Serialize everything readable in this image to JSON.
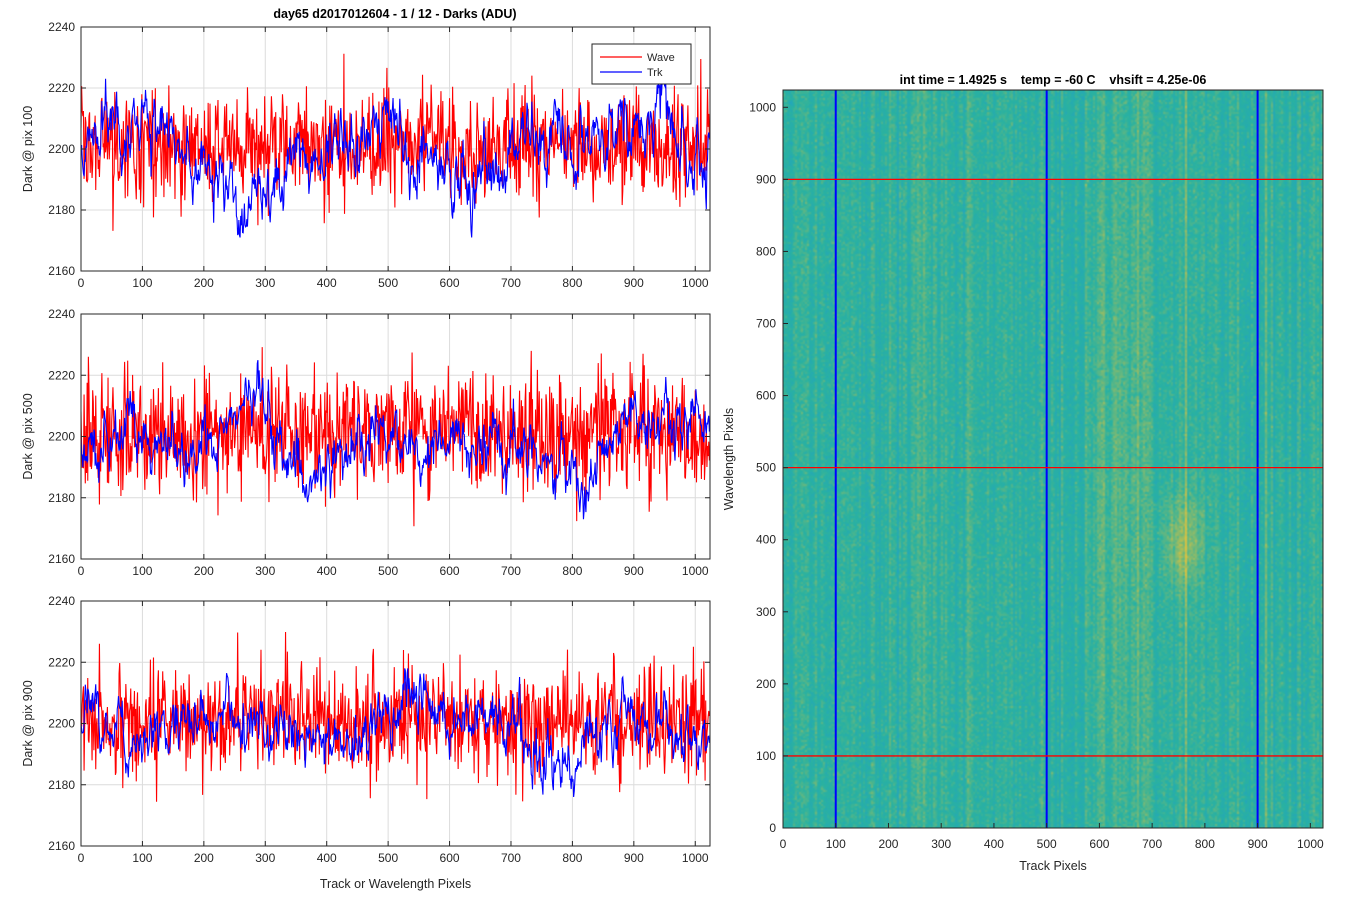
{
  "figure": {
    "left_title": "day65 d2017012604 - 1 / 12 - Darks (ADU)",
    "right_title": "int time = 1.4925 s    temp = -60 C    vhsift = 4.25e-06"
  },
  "colors": {
    "wave": "#ff0000",
    "trk": "#0000ff",
    "heatmap_low": "#1d9bd4",
    "heatmap_mid": "#2ab2a0",
    "heatmap_high": "#e2c23c",
    "grid": "#dcdcdc",
    "axis": "#262626"
  },
  "chart_data": [
    {
      "type": "line",
      "title": "day65 d2017012604 - 1 / 12 - Darks (ADU)",
      "xlabel": "",
      "ylabel": "Dark @ pix 100",
      "xlim": [
        0,
        1024
      ],
      "ylim": [
        2160,
        2240
      ],
      "xticks": [
        0,
        100,
        200,
        300,
        400,
        500,
        600,
        700,
        800,
        900,
        1000
      ],
      "yticks": [
        2160,
        2180,
        2200,
        2220,
        2240
      ],
      "grid": true,
      "legend": {
        "placement": "top-right",
        "entries": [
          "Wave",
          "Trk"
        ]
      },
      "series": [
        {
          "name": "Wave",
          "color": "#ff0000",
          "mean": 2201,
          "noise_sd": 9,
          "points": 1024,
          "summary": {
            "min": 2162,
            "max": 2237
          }
        },
        {
          "name": "Trk",
          "color": "#0000ff",
          "mean": 2200,
          "noise_sd": 7,
          "points": 1024,
          "summary": {
            "min": 2171,
            "max": 2226
          },
          "trend": [
            [
              0,
              2198
            ],
            [
              50,
              2212
            ],
            [
              120,
              2206
            ],
            [
              200,
              2196
            ],
            [
              260,
              2183
            ],
            [
              330,
              2191
            ],
            [
              420,
              2200
            ],
            [
              500,
              2202
            ],
            [
              580,
              2198
            ],
            [
              650,
              2190
            ],
            [
              720,
              2200
            ],
            [
              800,
              2204
            ],
            [
              880,
              2208
            ],
            [
              960,
              2206
            ],
            [
              1024,
              2192
            ]
          ]
        }
      ]
    },
    {
      "type": "line",
      "title": "",
      "xlabel": "",
      "ylabel": "Dark @ pix 500",
      "xlim": [
        0,
        1024
      ],
      "ylim": [
        2160,
        2240
      ],
      "xticks": [
        0,
        100,
        200,
        300,
        400,
        500,
        600,
        700,
        800,
        900,
        1000
      ],
      "yticks": [
        2160,
        2180,
        2200,
        2220,
        2240
      ],
      "grid": true,
      "series": [
        {
          "name": "Wave",
          "color": "#ff0000",
          "mean": 2201,
          "noise_sd": 10,
          "points": 1024,
          "summary": {
            "min": 2167,
            "max": 2238
          }
        },
        {
          "name": "Trk",
          "color": "#0000ff",
          "mean": 2199,
          "noise_sd": 6,
          "points": 1024,
          "summary": {
            "min": 2173,
            "max": 2232
          },
          "trend": [
            [
              0,
              2198
            ],
            [
              80,
              2206
            ],
            [
              150,
              2196
            ],
            [
              220,
              2200
            ],
            [
              280,
              2218
            ],
            [
              320,
              2196
            ],
            [
              380,
              2188
            ],
            [
              460,
              2200
            ],
            [
              540,
              2196
            ],
            [
              620,
              2200
            ],
            [
              680,
              2198
            ],
            [
              760,
              2192
            ],
            [
              820,
              2182
            ],
            [
              880,
              2200
            ],
            [
              960,
              2203
            ],
            [
              1024,
              2208
            ]
          ]
        }
      ]
    },
    {
      "type": "line",
      "title": "",
      "xlabel": "Track or Wavelength Pixels",
      "ylabel": "Dark @ pix 900",
      "xlim": [
        0,
        1024
      ],
      "ylim": [
        2160,
        2240
      ],
      "xticks": [
        0,
        100,
        200,
        300,
        400,
        500,
        600,
        700,
        800,
        900,
        1000
      ],
      "yticks": [
        2160,
        2180,
        2200,
        2220,
        2240
      ],
      "grid": true,
      "series": [
        {
          "name": "Wave",
          "color": "#ff0000",
          "mean": 2201,
          "noise_sd": 9,
          "points": 1024,
          "summary": {
            "min": 2163,
            "max": 2231
          }
        },
        {
          "name": "Trk",
          "color": "#0000ff",
          "mean": 2198,
          "noise_sd": 6,
          "points": 1024,
          "summary": {
            "min": 2168,
            "max": 2218
          },
          "trend": [
            [
              0,
              2204
            ],
            [
              80,
              2195
            ],
            [
              160,
              2200
            ],
            [
              250,
              2200
            ],
            [
              330,
              2196
            ],
            [
              400,
              2194
            ],
            [
              460,
              2196
            ],
            [
              520,
              2206
            ],
            [
              600,
              2200
            ],
            [
              700,
              2198
            ],
            [
              780,
              2186
            ],
            [
              840,
              2196
            ],
            [
              900,
              2203
            ],
            [
              960,
              2200
            ],
            [
              1024,
              2200
            ]
          ]
        }
      ]
    },
    {
      "type": "heatmap",
      "title": "int time = 1.4925 s    temp = -60 C    vhsift = 4.25e-06",
      "xlabel": "Track Pixels",
      "ylabel": "Wavelength Pixels",
      "xlim": [
        0,
        1024
      ],
      "ylim": [
        0,
        1024
      ],
      "xticks": [
        0,
        100,
        200,
        300,
        400,
        500,
        600,
        700,
        800,
        900,
        1000
      ],
      "yticks": [
        0,
        100,
        200,
        300,
        400,
        500,
        600,
        700,
        800,
        900,
        1000
      ],
      "colormap": "parula",
      "bright_regions": [
        {
          "x_range": [
            560,
            700
          ],
          "y_range": [
            0,
            1024
          ],
          "level": "moderate"
        },
        {
          "x_range": [
            720,
            800
          ],
          "y_range": [
            320,
            470
          ],
          "level": "high"
        }
      ],
      "marker_lines": {
        "vertical_track_pixels": [
          100,
          500,
          900
        ],
        "horizontal_wavelength_pixels": [
          100,
          500,
          900
        ],
        "vertical_color": "#0000ff",
        "horizontal_color": "#ff0000"
      }
    }
  ]
}
